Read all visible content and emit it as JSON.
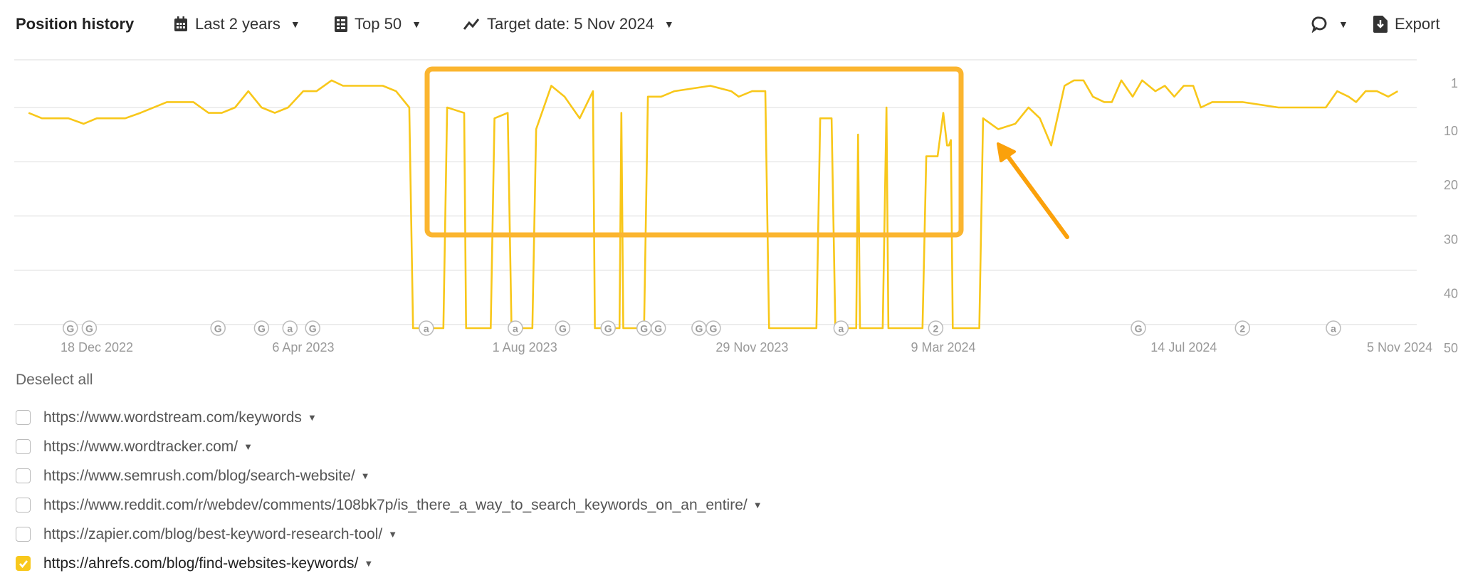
{
  "header": {
    "title": "Position history",
    "period_label": "Last 2 years",
    "top_label": "Top 50",
    "target_date_label": "Target date: 5 Nov 2024",
    "export_label": "Export",
    "icons": {
      "period": "calendar-icon",
      "top": "table-icon",
      "target": "trend-line-icon",
      "comment": "speech-bubble-icon",
      "export": "download-file-icon"
    }
  },
  "chart_data": {
    "type": "line",
    "title": "",
    "xlabel": "",
    "ylabel": "",
    "y_inverted": true,
    "ylim": [
      1,
      50
    ],
    "y_ticks": [
      "1",
      "10",
      "20",
      "30",
      "40",
      "50"
    ],
    "y_axis_side": "right",
    "x_ticks": [
      {
        "date": "2022-12-18",
        "label": "18 Dec 2022"
      },
      {
        "date": "2023-04-06",
        "label": "6 Apr 2023"
      },
      {
        "date": "2023-08-01",
        "label": "1 Aug 2023"
      },
      {
        "date": "2023-11-29",
        "label": "29 Nov 2023"
      },
      {
        "date": "2024-03-09",
        "label": "9 Mar 2024"
      },
      {
        "date": "2024-07-14",
        "label": "14 Jul 2024"
      },
      {
        "date": "2024-11-05",
        "label": "5 Nov 2024"
      }
    ],
    "grid": true,
    "line_color": "#F8C71A",
    "series": [
      {
        "url": "https://ahrefs.com/blog/find-websites-keywords/",
        "points": [
          [
            "2022-11-12",
            11
          ],
          [
            "2022-11-19",
            12
          ],
          [
            "2022-12-03",
            12
          ],
          [
            "2022-12-11",
            13
          ],
          [
            "2022-12-18",
            12
          ],
          [
            "2023-01-02",
            12
          ],
          [
            "2023-01-10",
            11
          ],
          [
            "2023-01-24",
            9
          ],
          [
            "2023-02-07",
            9
          ],
          [
            "2023-02-15",
            11
          ],
          [
            "2023-02-22",
            11
          ],
          [
            "2023-03-01",
            10
          ],
          [
            "2023-03-08",
            7
          ],
          [
            "2023-03-15",
            10
          ],
          [
            "2023-03-22",
            11
          ],
          [
            "2023-03-29",
            10
          ],
          [
            "2023-04-06",
            7
          ],
          [
            "2023-04-13",
            7
          ],
          [
            "2023-04-21",
            5
          ],
          [
            "2023-04-27",
            6
          ],
          [
            "2023-05-18",
            6
          ],
          [
            "2023-05-25",
            7
          ],
          [
            "2023-06-01",
            10
          ],
          [
            "2023-06-03",
            null
          ],
          [
            "2023-06-19",
            null
          ],
          [
            "2023-06-21",
            10
          ],
          [
            "2023-06-30",
            11
          ],
          [
            "2023-07-01",
            null
          ],
          [
            "2023-07-14",
            null
          ],
          [
            "2023-07-16",
            12
          ],
          [
            "2023-07-23",
            11
          ],
          [
            "2023-07-25",
            null
          ],
          [
            "2023-08-05",
            null
          ],
          [
            "2023-08-07",
            14
          ],
          [
            "2023-08-15",
            6
          ],
          [
            "2023-08-22",
            8
          ],
          [
            "2023-08-30",
            12
          ],
          [
            "2023-09-06",
            7
          ],
          [
            "2023-09-07",
            null
          ],
          [
            "2023-09-20",
            null
          ],
          [
            "2023-09-21",
            11
          ],
          [
            "2023-09-22",
            null
          ],
          [
            "2023-10-03",
            null
          ],
          [
            "2023-10-05",
            8
          ],
          [
            "2023-10-12",
            8
          ],
          [
            "2023-10-19",
            7
          ],
          [
            "2023-11-07",
            6
          ],
          [
            "2023-11-18",
            7
          ],
          [
            "2023-11-22",
            8
          ],
          [
            "2023-11-29",
            7
          ],
          [
            "2023-12-06",
            7
          ],
          [
            "2023-12-08",
            null
          ],
          [
            "2024-01-02",
            null
          ],
          [
            "2024-01-04",
            12
          ],
          [
            "2024-01-10",
            12
          ],
          [
            "2024-01-12",
            null
          ],
          [
            "2024-01-23",
            null
          ],
          [
            "2024-01-24",
            15
          ],
          [
            "2024-01-25",
            null
          ],
          [
            "2024-02-06",
            null
          ],
          [
            "2024-02-08",
            10
          ],
          [
            "2024-02-09",
            null
          ],
          [
            "2024-02-27",
            null
          ],
          [
            "2024-02-29",
            19
          ],
          [
            "2024-03-06",
            19
          ],
          [
            "2024-03-09",
            11
          ],
          [
            "2024-03-11",
            17
          ],
          [
            "2024-03-12",
            17
          ],
          [
            "2024-03-13",
            16
          ],
          [
            "2024-03-14",
            null
          ],
          [
            "2024-03-28",
            null
          ],
          [
            "2024-03-30",
            12
          ],
          [
            "2024-04-07",
            14
          ],
          [
            "2024-04-16",
            13
          ],
          [
            "2024-04-23",
            10
          ],
          [
            "2024-04-29",
            12
          ],
          [
            "2024-05-05",
            17
          ],
          [
            "2024-05-12",
            6
          ],
          [
            "2024-05-17",
            5
          ],
          [
            "2024-05-22",
            5
          ],
          [
            "2024-05-27",
            8
          ],
          [
            "2024-06-02",
            9
          ],
          [
            "2024-06-06",
            9
          ],
          [
            "2024-06-11",
            5
          ],
          [
            "2024-06-17",
            8
          ],
          [
            "2024-06-22",
            5
          ],
          [
            "2024-06-29",
            7
          ],
          [
            "2024-07-04",
            6
          ],
          [
            "2024-07-09",
            8
          ],
          [
            "2024-07-14",
            6
          ],
          [
            "2024-07-19",
            6
          ],
          [
            "2024-07-23",
            10
          ],
          [
            "2024-07-29",
            9
          ],
          [
            "2024-08-14",
            9
          ],
          [
            "2024-09-02",
            10
          ],
          [
            "2024-09-17",
            10
          ],
          [
            "2024-09-27",
            10
          ],
          [
            "2024-10-03",
            7
          ],
          [
            "2024-10-09",
            8
          ],
          [
            "2024-10-13",
            9
          ],
          [
            "2024-10-18",
            7
          ],
          [
            "2024-10-24",
            7
          ],
          [
            "2024-10-30",
            8
          ],
          [
            "2024-11-04",
            7
          ]
        ]
      }
    ],
    "event_markers": [
      {
        "date": "2022-12-04",
        "label": "G"
      },
      {
        "date": "2022-12-14",
        "label": "G"
      },
      {
        "date": "2023-02-20",
        "label": "G"
      },
      {
        "date": "2023-03-15",
        "label": "G"
      },
      {
        "date": "2023-03-30",
        "label": "a"
      },
      {
        "date": "2023-04-11",
        "label": "G"
      },
      {
        "date": "2023-06-10",
        "label": "a"
      },
      {
        "date": "2023-07-27",
        "label": "a"
      },
      {
        "date": "2023-08-21",
        "label": "G"
      },
      {
        "date": "2023-09-14",
        "label": "G"
      },
      {
        "date": "2023-10-03",
        "label": "G"
      },
      {
        "date": "2023-10-04",
        "label": "G"
      },
      {
        "date": "2023-11-01",
        "label": "G"
      },
      {
        "date": "2023-11-07",
        "label": "G"
      },
      {
        "date": "2024-01-15",
        "label": "a"
      },
      {
        "date": "2024-03-05",
        "label": "2"
      },
      {
        "date": "2024-06-20",
        "label": "G"
      },
      {
        "date": "2024-08-14",
        "label": "2"
      },
      {
        "date": "2024-10-01",
        "label": "a"
      }
    ],
    "highlight_color": "#FBB52F",
    "arrow_color": "#FBA10B"
  },
  "list": {
    "deselect_label": "Deselect all",
    "items": [
      {
        "url": "https://www.wordstream.com/keywords",
        "checked": false
      },
      {
        "url": "https://www.wordtracker.com/",
        "checked": false
      },
      {
        "url": "https://www.semrush.com/blog/search-website/",
        "checked": false
      },
      {
        "url": "https://www.reddit.com/r/webdev/comments/108bk7p/is_there_a_way_to_search_keywords_on_an_entire/",
        "checked": false
      },
      {
        "url": "https://zapier.com/blog/best-keyword-research-tool/",
        "checked": false
      },
      {
        "url": "https://ahrefs.com/blog/find-websites-keywords/",
        "checked": true
      }
    ]
  }
}
